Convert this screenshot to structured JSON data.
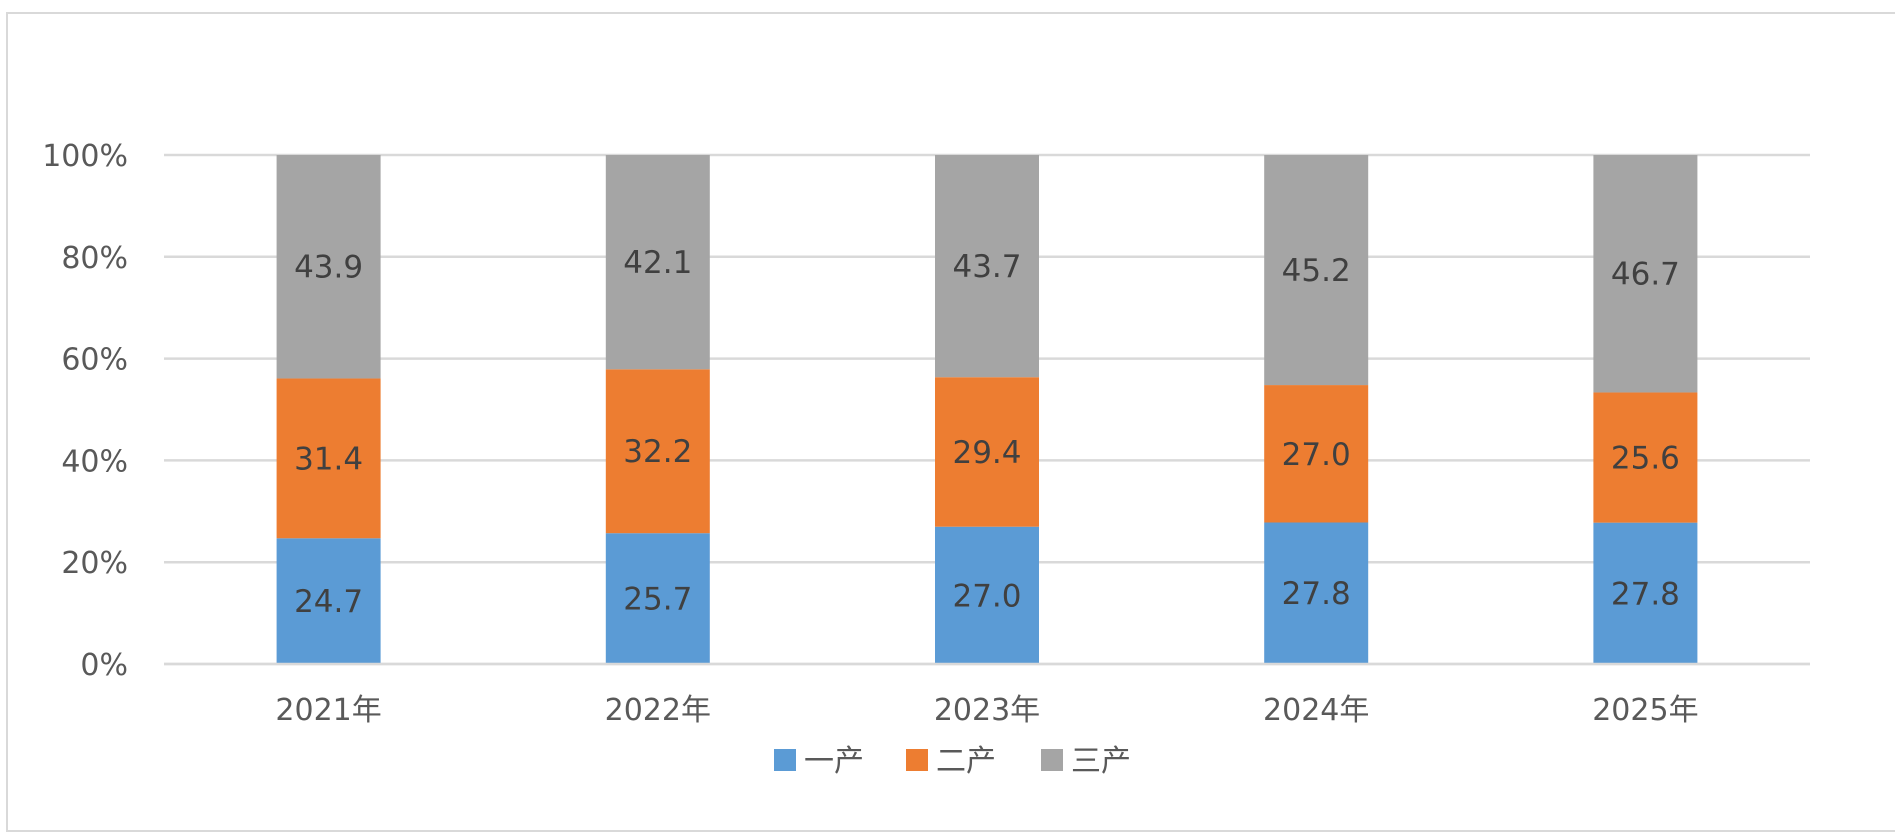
{
  "chart_data": {
    "type": "bar",
    "stacked": true,
    "percent_stacked": true,
    "categories": [
      "2021年",
      "2022年",
      "2023年",
      "2024年",
      "2025年"
    ],
    "series": [
      {
        "name": "一产",
        "values": [
          24.7,
          25.7,
          27.0,
          27.8,
          27.8
        ],
        "labels": [
          "24.7",
          "25.7",
          "27.0",
          "27.8",
          "27.8"
        ],
        "color": "#5b9bd5"
      },
      {
        "name": "二产",
        "values": [
          31.4,
          32.2,
          29.4,
          27.0,
          25.6
        ],
        "labels": [
          "31.4",
          "32.2",
          "29.4",
          "27.0",
          "25.6"
        ],
        "color": "#ed7d31"
      },
      {
        "name": "三产",
        "values": [
          43.9,
          42.1,
          43.7,
          45.2,
          46.7
        ],
        "labels": [
          "43.9",
          "42.1",
          "43.7",
          "45.2",
          "46.7"
        ],
        "color": "#a5a5a5"
      }
    ],
    "yticks": [
      "0%",
      "20%",
      "40%",
      "60%",
      "80%",
      "100%"
    ],
    "ylim": [
      0,
      100
    ],
    "grid": true,
    "gridline_color": "#d9d9d9",
    "legend_position": "bottom",
    "title": "",
    "xlabel": "",
    "ylabel": ""
  }
}
